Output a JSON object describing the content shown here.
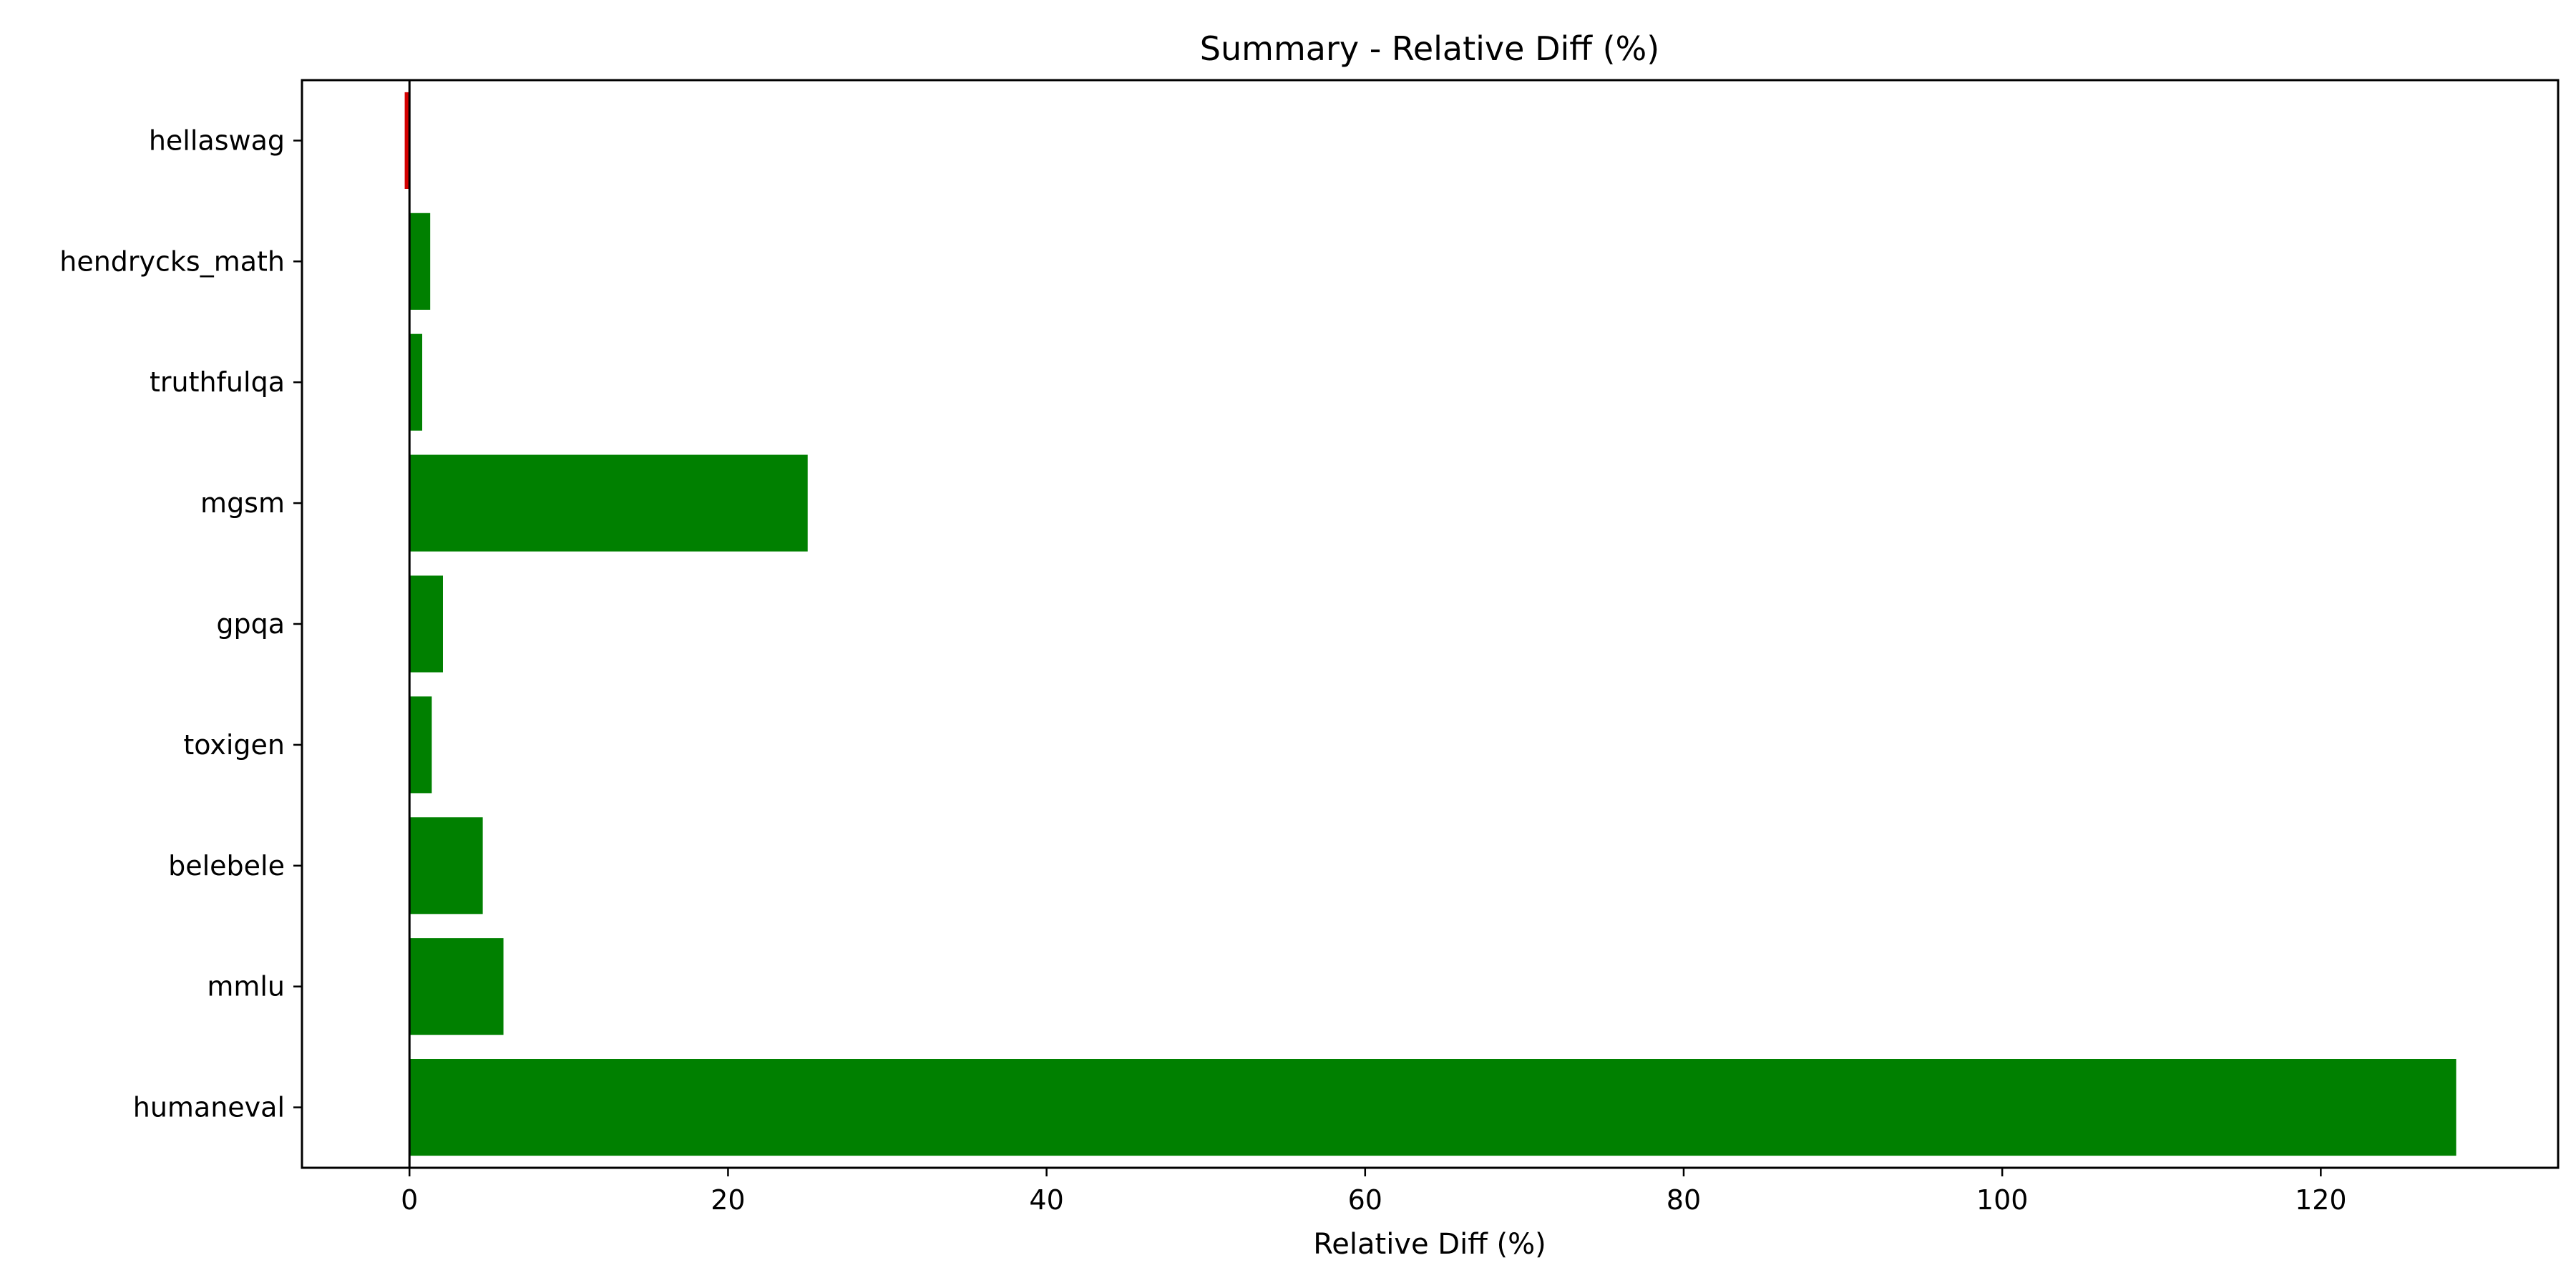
{
  "chart_data": {
    "type": "bar",
    "orientation": "horizontal",
    "title": "Summary - Relative Diff (%)",
    "xlabel": "Relative Diff (%)",
    "ylabel": "",
    "categories": [
      "hellaswag",
      "hendrycks_math",
      "truthfulqa",
      "mgsm",
      "gpqa",
      "toxigen",
      "belebele",
      "mmlu",
      "humaneval"
    ],
    "values": [
      -0.3,
      1.3,
      0.8,
      25.0,
      2.1,
      1.4,
      4.6,
      5.9,
      128.5
    ],
    "xlim": [
      -6.75,
      134.9
    ],
    "xticks": [
      0,
      20,
      40,
      60,
      80,
      100,
      120
    ],
    "grid": false,
    "legend": "none",
    "colors": {
      "positive": "#008000",
      "negative": "#d40000",
      "zero_line": "#000000"
    }
  }
}
